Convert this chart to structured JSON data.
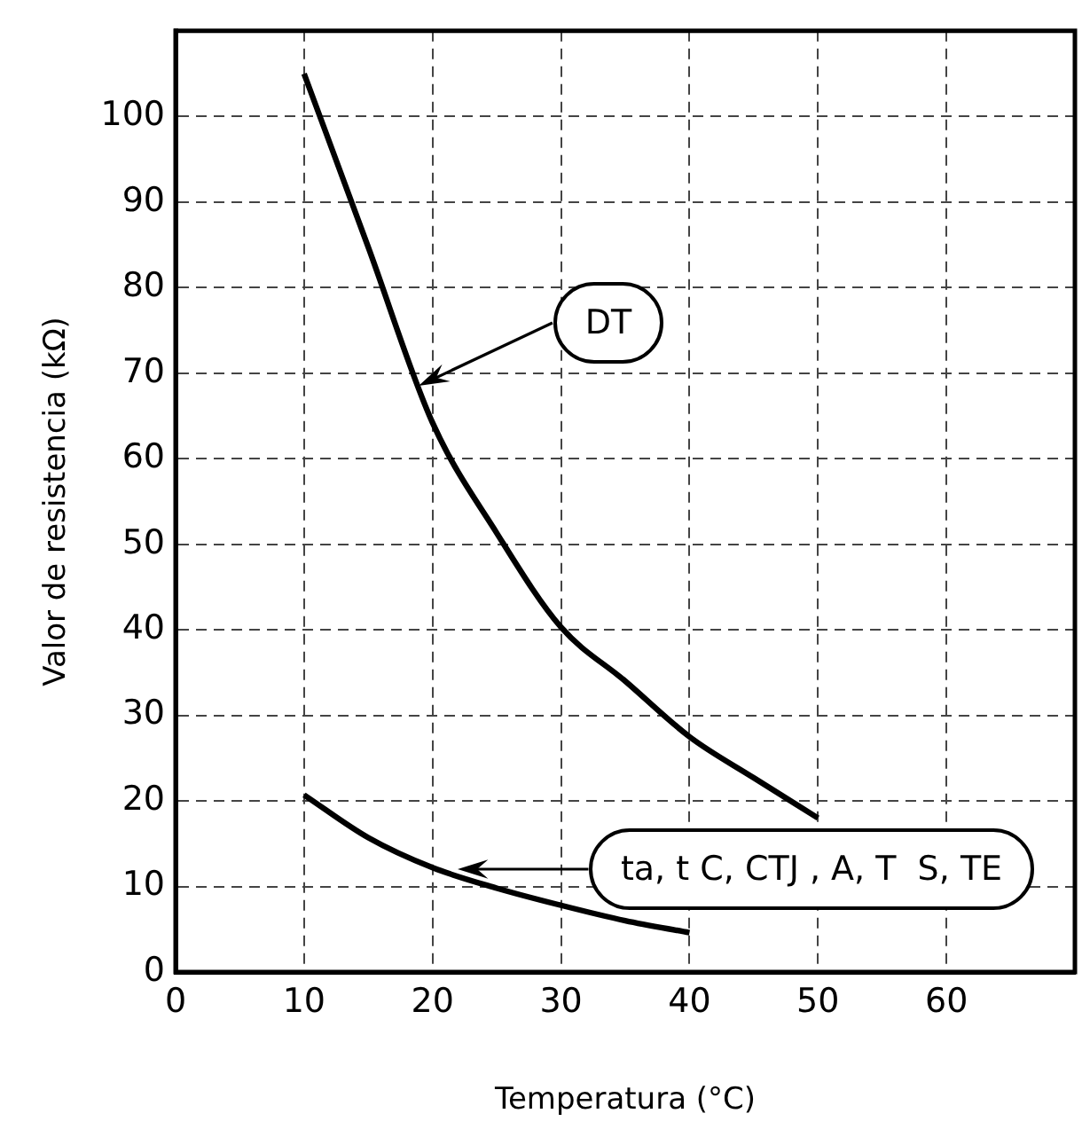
{
  "chart_data": {
    "type": "line",
    "xlabel": "Temperatura (°C)",
    "ylabel": "Valor de resistencia (kΩ)",
    "xlim": [
      0,
      70
    ],
    "xticks": [
      0,
      10,
      20,
      30,
      40,
      50,
      60
    ],
    "ylim": [
      0,
      110
    ],
    "yticks": [
      0,
      10,
      20,
      30,
      40,
      50,
      60,
      70,
      80,
      90,
      100
    ],
    "grid": true,
    "legend": false,
    "marker": "none",
    "line_style": "solid",
    "series": [
      {
        "color": "#000000",
        "x": [
          10,
          15,
          20,
          25,
          30,
          35,
          40,
          45,
          50
        ],
        "values": [
          105,
          84.7,
          64.2,
          51.3,
          40.3,
          34,
          27.5,
          22.7,
          18
        ]
      },
      {
        "color": "#000000",
        "x": [
          10,
          15,
          20,
          25,
          30,
          35,
          40
        ],
        "values": [
          20.7,
          15.7,
          12.2,
          9.8,
          7.8,
          6,
          4.6
        ]
      }
    ],
    "annotations": [
      "DT",
      "ta, t C, CTJ , A, T  S, TE"
    ]
  }
}
